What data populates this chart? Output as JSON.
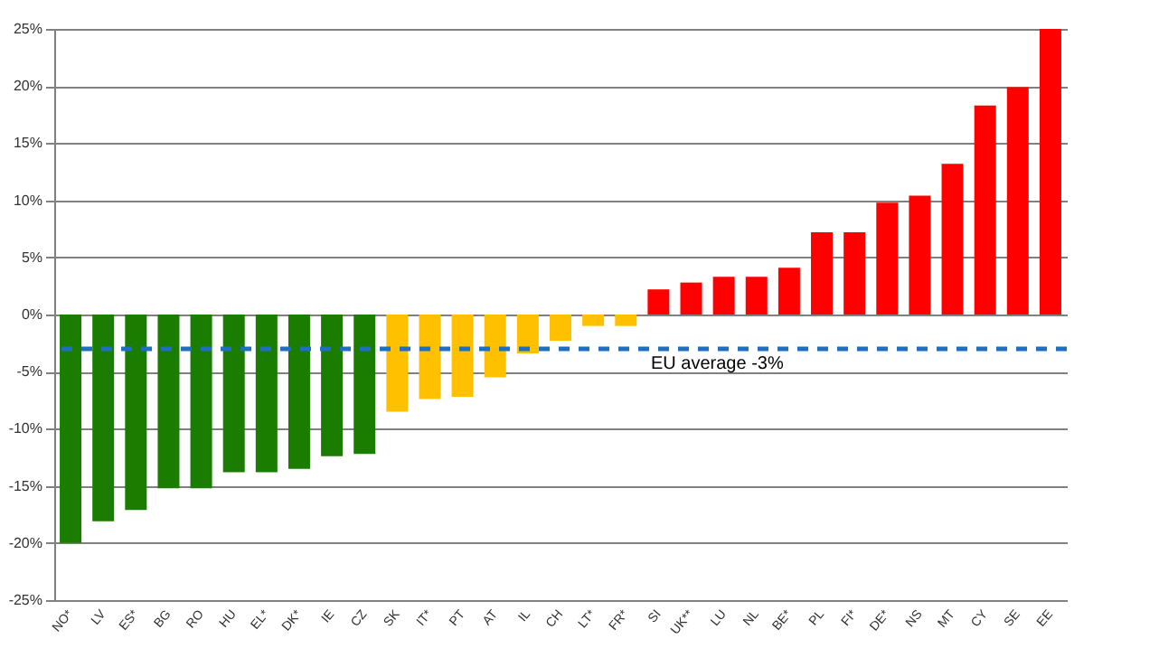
{
  "chart_data": {
    "type": "bar",
    "categories": [
      "NO*",
      "LV",
      "ES*",
      "BG",
      "RO",
      "HU",
      "EL*",
      "DK*",
      "IE",
      "CZ",
      "SK",
      "IT*",
      "PT",
      "AT",
      "IL",
      "CH",
      "LT*",
      "FR*",
      "SI",
      "UK**",
      "LU",
      "NL",
      "BE*",
      "PL",
      "FI*",
      "DE*",
      "NS",
      "MT",
      "CY",
      "SE",
      "EE"
    ],
    "values": [
      -20.0,
      -18.1,
      -17.1,
      -15.2,
      -15.2,
      -13.8,
      -13.8,
      -13.5,
      -12.4,
      -12.2,
      -8.5,
      -7.4,
      -7.2,
      -5.5,
      -3.4,
      -2.3,
      -1.0,
      -1.0,
      2.2,
      2.8,
      3.3,
      3.3,
      4.1,
      7.2,
      7.2,
      9.8,
      10.4,
      13.2,
      18.3,
      19.9,
      25.0
    ],
    "colors": [
      "#1a7d00",
      "#1a7d00",
      "#1a7d00",
      "#1a7d00",
      "#1a7d00",
      "#1a7d00",
      "#1a7d00",
      "#1a7d00",
      "#1a7d00",
      "#1a7d00",
      "#ffc000",
      "#ffc000",
      "#ffc000",
      "#ffc000",
      "#ffc000",
      "#ffc000",
      "#ffc000",
      "#ffc000",
      "#ff0000",
      "#ff0000",
      "#ff0000",
      "#ff0000",
      "#ff0000",
      "#ff0000",
      "#ff0000",
      "#ff0000",
      "#ff0000",
      "#ff0000",
      "#ff0000",
      "#ff0000",
      "#ff0000"
    ],
    "ylim": [
      -25,
      25
    ],
    "yticks": [
      {
        "value": -25,
        "label": "-25%"
      },
      {
        "value": -20,
        "label": "-20%"
      },
      {
        "value": -15,
        "label": "-15%"
      },
      {
        "value": -10,
        "label": "-10%"
      },
      {
        "value": -5,
        "label": "-5%"
      },
      {
        "value": 0,
        "label": "0%"
      },
      {
        "value": 5,
        "label": "5%"
      },
      {
        "value": 10,
        "label": "10%"
      },
      {
        "value": 15,
        "label": "15%"
      },
      {
        "value": 20,
        "label": "20%"
      },
      {
        "value": 25,
        "label": "25%"
      }
    ],
    "grid": "y",
    "ref_lines": [
      {
        "axis": "y",
        "value": -3,
        "label": "EU average -3%",
        "color": "#1f6fc0",
        "line_style": "dashed"
      }
    ]
  }
}
